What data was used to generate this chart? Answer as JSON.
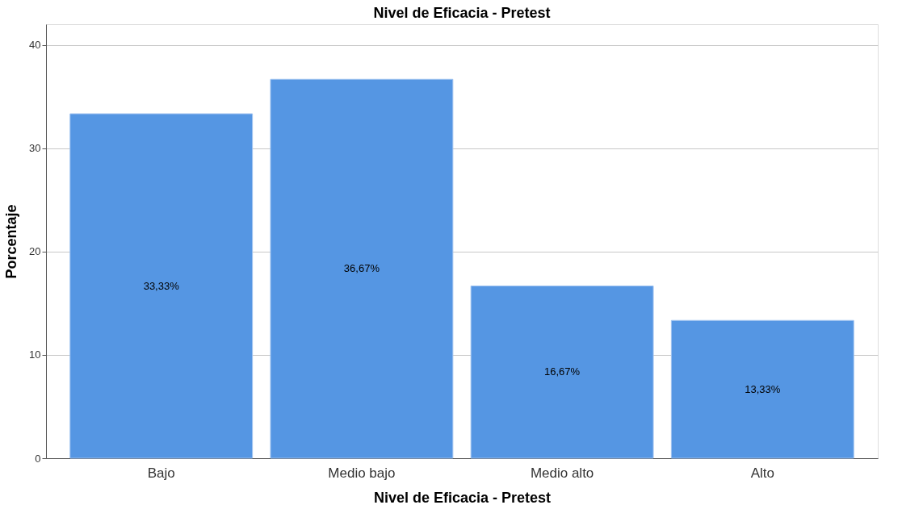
{
  "chart_data": {
    "type": "bar",
    "title": "Nivel de Eficacia - Pretest",
    "xlabel": "Nivel de Eficacia - Pretest",
    "ylabel": "Porcentaje",
    "categories": [
      "Bajo",
      "Medio bajo",
      "Medio alto",
      "Alto"
    ],
    "values": [
      33.33,
      36.67,
      16.67,
      13.33
    ],
    "value_labels": [
      "33,33%",
      "36,67%",
      "16,67%",
      "13,33%"
    ],
    "color": "#5596e3",
    "ylim": [
      0,
      42
    ],
    "yticks": [
      0,
      10,
      20,
      30,
      40
    ],
    "grid": "y"
  }
}
